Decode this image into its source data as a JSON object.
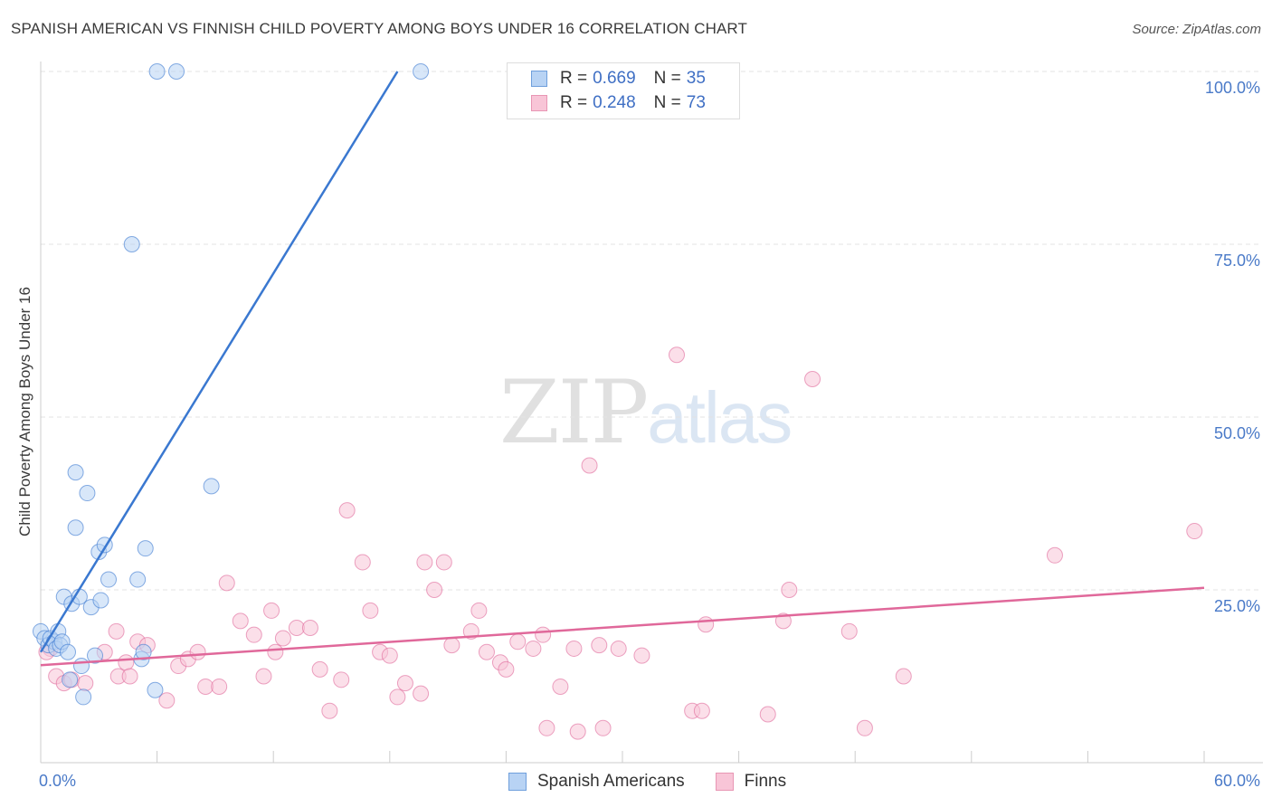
{
  "title": "SPANISH AMERICAN VS FINNISH CHILD POVERTY AMONG BOYS UNDER 16 CORRELATION CHART",
  "source": "Source: ZipAtlas.com",
  "watermark": {
    "zip": "ZIP",
    "atlas": "atlas"
  },
  "legend": {
    "r_label": "R =",
    "n_label": "N =",
    "rows": [
      {
        "r": "0.669",
        "n": "35"
      },
      {
        "r": "0.248",
        "n": "73"
      }
    ]
  },
  "chart_data": {
    "type": "scatter",
    "title": "SPANISH AMERICAN VS FINNISH CHILD POVERTY AMONG BOYS UNDER 16 CORRELATION CHART",
    "xlabel": "",
    "ylabel": "Child Poverty Among Boys Under 16",
    "xlim": [
      0,
      60
    ],
    "ylim": [
      0,
      100
    ],
    "x_tick_labels": [
      "0.0%",
      "60.0%"
    ],
    "y_tick_labels": [
      "100.0%",
      "75.0%",
      "50.0%",
      "25.0%"
    ],
    "y_ticks": [
      100,
      75,
      50,
      25
    ],
    "colors": {
      "blue": "#3a78d0",
      "pink": "#e0689a",
      "blue_fill": "#b8d3f4",
      "pink_fill": "#f8c5d7"
    },
    "series": [
      {
        "name": "Spanish Americans",
        "r": 0.669,
        "n": 35,
        "trend": {
          "x": [
            0,
            18.4
          ],
          "y": [
            16,
            100
          ]
        },
        "points": [
          [
            0.0,
            19
          ],
          [
            0.2,
            18
          ],
          [
            0.4,
            17
          ],
          [
            0.5,
            18
          ],
          [
            0.7,
            17.5
          ],
          [
            0.8,
            16.5
          ],
          [
            0.9,
            19
          ],
          [
            1.0,
            17
          ],
          [
            1.1,
            17.5
          ],
          [
            1.2,
            24
          ],
          [
            1.4,
            16
          ],
          [
            1.5,
            12
          ],
          [
            1.6,
            23
          ],
          [
            1.8,
            42
          ],
          [
            1.8,
            34
          ],
          [
            2.0,
            24
          ],
          [
            2.1,
            14
          ],
          [
            2.2,
            9.5
          ],
          [
            2.4,
            39
          ],
          [
            2.6,
            22.5
          ],
          [
            2.8,
            15.5
          ],
          [
            3.0,
            30.5
          ],
          [
            3.1,
            23.5
          ],
          [
            3.3,
            31.5
          ],
          [
            3.5,
            26.5
          ],
          [
            4.7,
            75
          ],
          [
            5.0,
            26.5
          ],
          [
            5.2,
            15
          ],
          [
            5.3,
            16
          ],
          [
            5.4,
            31
          ],
          [
            5.9,
            10.5
          ],
          [
            6.0,
            100
          ],
          [
            7.0,
            100
          ],
          [
            8.8,
            40
          ],
          [
            19.6,
            100
          ]
        ]
      },
      {
        "name": "Finns",
        "r": 0.248,
        "n": 73,
        "trend": {
          "x": [
            0,
            60
          ],
          "y": [
            14.1,
            25.3
          ]
        },
        "points": [
          [
            0.5,
            16.5
          ],
          [
            0.8,
            12.5
          ],
          [
            1.2,
            11.5
          ],
          [
            1.6,
            12
          ],
          [
            2.3,
            11.5
          ],
          [
            3.3,
            16
          ],
          [
            3.9,
            19
          ],
          [
            4.0,
            12.5
          ],
          [
            4.4,
            14.5
          ],
          [
            4.6,
            12.5
          ],
          [
            5.0,
            17.5
          ],
          [
            5.5,
            17
          ],
          [
            6.5,
            9
          ],
          [
            7.1,
            14
          ],
          [
            7.6,
            15
          ],
          [
            8.1,
            16
          ],
          [
            8.5,
            11
          ],
          [
            9.2,
            11
          ],
          [
            9.6,
            26
          ],
          [
            10.3,
            20.5
          ],
          [
            11.0,
            18.5
          ],
          [
            11.5,
            12.5
          ],
          [
            11.9,
            22
          ],
          [
            12.1,
            16
          ],
          [
            12.5,
            18
          ],
          [
            13.2,
            19.5
          ],
          [
            13.9,
            19.5
          ],
          [
            14.4,
            13.5
          ],
          [
            14.9,
            7.5
          ],
          [
            15.5,
            12
          ],
          [
            15.8,
            36.5
          ],
          [
            16.6,
            29
          ],
          [
            17.0,
            22
          ],
          [
            17.5,
            16
          ],
          [
            18.0,
            15.5
          ],
          [
            18.4,
            9.5
          ],
          [
            18.8,
            11.5
          ],
          [
            19.6,
            10
          ],
          [
            19.8,
            29
          ],
          [
            20.3,
            25
          ],
          [
            20.8,
            29
          ],
          [
            21.2,
            17
          ],
          [
            22.2,
            19
          ],
          [
            22.6,
            22
          ],
          [
            23.0,
            16
          ],
          [
            23.7,
            14.5
          ],
          [
            24.0,
            13.5
          ],
          [
            24.6,
            17.5
          ],
          [
            25.4,
            16.5
          ],
          [
            25.9,
            18.5
          ],
          [
            26.1,
            5
          ],
          [
            26.8,
            11
          ],
          [
            27.5,
            16.5
          ],
          [
            27.7,
            4.5
          ],
          [
            28.3,
            43
          ],
          [
            28.8,
            17
          ],
          [
            29.0,
            5
          ],
          [
            29.8,
            16.5
          ],
          [
            31.0,
            15.5
          ],
          [
            32.8,
            59
          ],
          [
            33.6,
            7.5
          ],
          [
            34.1,
            7.5
          ],
          [
            34.3,
            20
          ],
          [
            37.5,
            7
          ],
          [
            38.3,
            20.5
          ],
          [
            38.6,
            25
          ],
          [
            39.8,
            55.5
          ],
          [
            41.7,
            19
          ],
          [
            42.5,
            5
          ],
          [
            44.5,
            12.5
          ],
          [
            52.3,
            30
          ],
          [
            59.5,
            33.5
          ],
          [
            0.3,
            16
          ]
        ]
      }
    ]
  }
}
